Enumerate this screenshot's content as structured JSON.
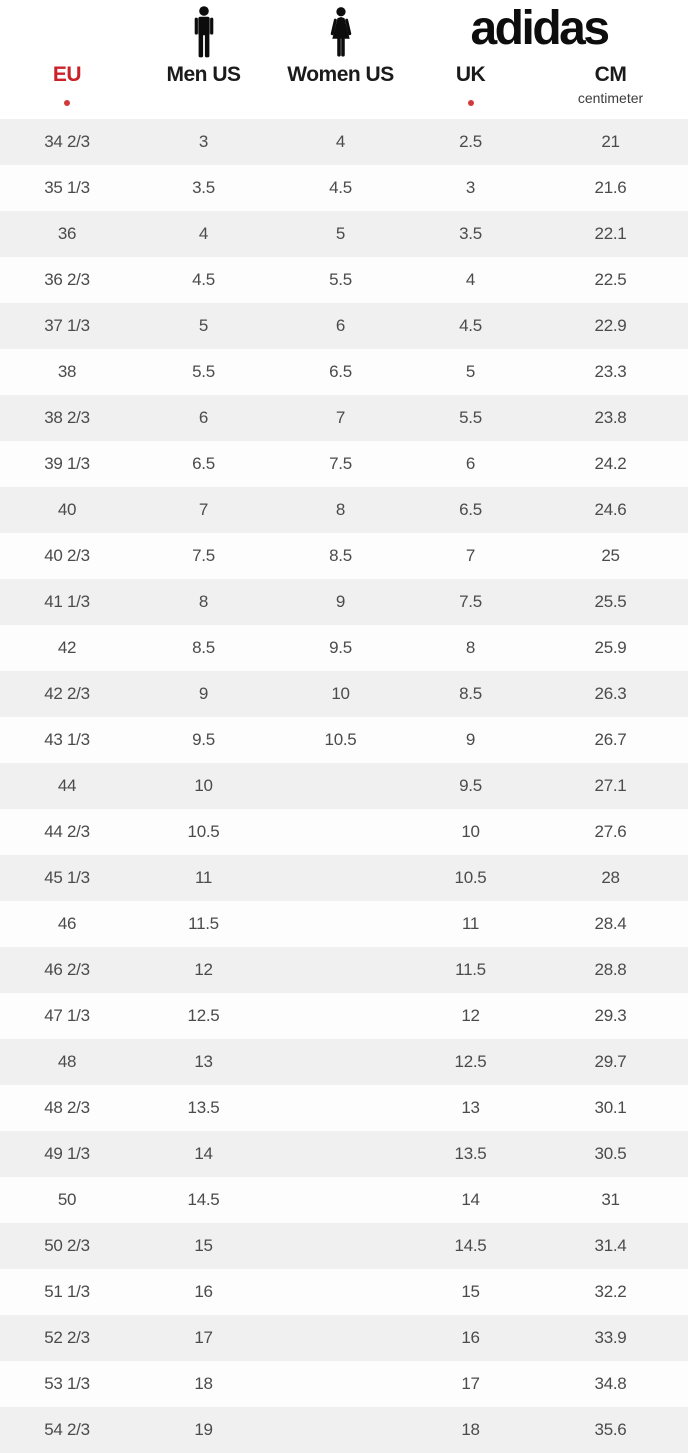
{
  "header": {
    "logo_text": "adidas",
    "eu_label": "EU",
    "men_label": "Men US",
    "women_label": "Women US",
    "uk_label": "UK",
    "cm_label": "CM",
    "cm_sublabel": "centimeter",
    "eu_footnote": true,
    "uk_footnote": true
  },
  "icons": {
    "man": "man-icon",
    "woman": "woman-icon"
  },
  "colors": {
    "accent_red": "#cb2129",
    "footnote_dot_red": "#d2393d",
    "stripe_gray": "#f0f0f0",
    "row_white": "#fdfdfd",
    "cell_text": "#4b4b4b",
    "heading_text": "#1b1b1b",
    "logo_black": "#0d0d0d"
  },
  "chart_data": {
    "type": "table",
    "title": "adidas shoe size conversion chart",
    "columns": [
      "EU",
      "Men US",
      "Women US",
      "UK",
      "CM"
    ],
    "column_sublabels": [
      "",
      "",
      "",
      "",
      "centimeter"
    ],
    "rows": [
      [
        "34 2/3",
        "3",
        "4",
        "2.5",
        "21"
      ],
      [
        "35 1/3",
        "3.5",
        "4.5",
        "3",
        "21.6"
      ],
      [
        "36",
        "4",
        "5",
        "3.5",
        "22.1"
      ],
      [
        "36 2/3",
        "4.5",
        "5.5",
        "4",
        "22.5"
      ],
      [
        "37 1/3",
        "5",
        "6",
        "4.5",
        "22.9"
      ],
      [
        "38",
        "5.5",
        "6.5",
        "5",
        "23.3"
      ],
      [
        "38 2/3",
        "6",
        "7",
        "5.5",
        "23.8"
      ],
      [
        "39 1/3",
        "6.5",
        "7.5",
        "6",
        "24.2"
      ],
      [
        "40",
        "7",
        "8",
        "6.5",
        "24.6"
      ],
      [
        "40 2/3",
        "7.5",
        "8.5",
        "7",
        "25"
      ],
      [
        "41 1/3",
        "8",
        "9",
        "7.5",
        "25.5"
      ],
      [
        "42",
        "8.5",
        "9.5",
        "8",
        "25.9"
      ],
      [
        "42 2/3",
        "9",
        "10",
        "8.5",
        "26.3"
      ],
      [
        "43 1/3",
        "9.5",
        "10.5",
        "9",
        "26.7"
      ],
      [
        "44",
        "10",
        "",
        "9.5",
        "27.1"
      ],
      [
        "44 2/3",
        "10.5",
        "",
        "10",
        "27.6"
      ],
      [
        "45 1/3",
        "11",
        "",
        "10.5",
        "28"
      ],
      [
        "46",
        "11.5",
        "",
        "11",
        "28.4"
      ],
      [
        "46 2/3",
        "12",
        "",
        "11.5",
        "28.8"
      ],
      [
        "47 1/3",
        "12.5",
        "",
        "12",
        "29.3"
      ],
      [
        "48",
        "13",
        "",
        "12.5",
        "29.7"
      ],
      [
        "48 2/3",
        "13.5",
        "",
        "13",
        "30.1"
      ],
      [
        "49 1/3",
        "14",
        "",
        "13.5",
        "30.5"
      ],
      [
        "50",
        "14.5",
        "",
        "14",
        "31"
      ],
      [
        "50 2/3",
        "15",
        "",
        "14.5",
        "31.4"
      ],
      [
        "51 1/3",
        "16",
        "",
        "15",
        "32.2"
      ],
      [
        "52 2/3",
        "17",
        "",
        "16",
        "33.9"
      ],
      [
        "53 1/3",
        "18",
        "",
        "17",
        "34.8"
      ],
      [
        "54 2/3",
        "19",
        "",
        "18",
        "35.6"
      ]
    ]
  }
}
